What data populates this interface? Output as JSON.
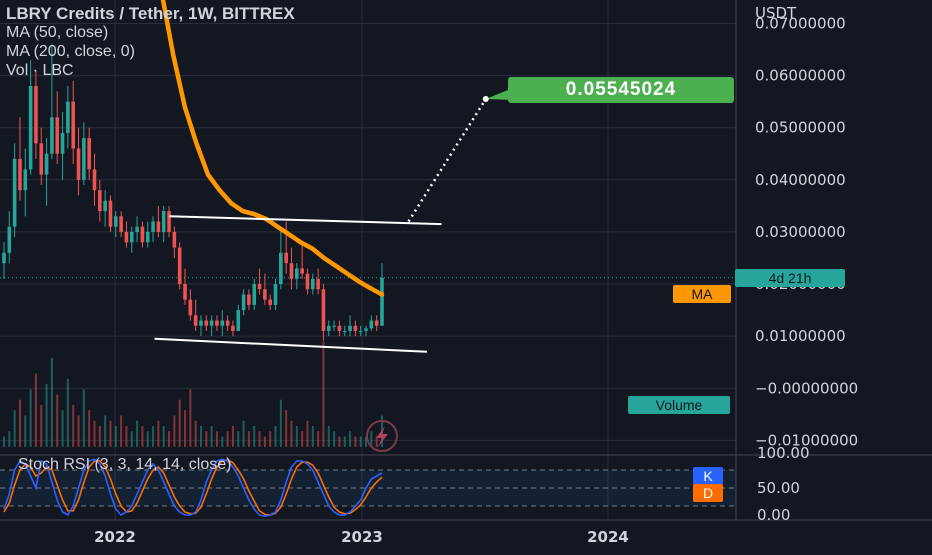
{
  "header": {
    "title": "LBRY Credits / Tether, 1W, BITTREX",
    "ma50": "MA (50, close)",
    "ma200": "MA (200, close, 0)",
    "vol": "Vol · LBC"
  },
  "stoch": {
    "title": "Stoch RSI (3, 3, 14, 14, close)",
    "k_label": "K",
    "d_label": "D"
  },
  "badges": {
    "countdown": "4d 21h",
    "ma": "MA",
    "volume": "Volume",
    "target_price": "0.05545024"
  },
  "colors": {
    "background": "#131722",
    "up": "#26a69a",
    "down": "#ef5350",
    "ma": "#ff9800",
    "target": "#4caf50",
    "k_line": "#2962ff",
    "d_line": "#ff6d00"
  },
  "chart_data": {
    "type": "candlestick",
    "title": "LBRY Credits / Tether, 1W, BITTREX",
    "y_axis_unit": "USDT",
    "y_ticks": [
      "0.07000000",
      "0.06000000",
      "0.05000000",
      "0.04000000",
      "0.03000000",
      "0.02000000",
      "0.01000000",
      "−0.00000000",
      "−0.01000000"
    ],
    "y_tick_values": [
      0.07,
      0.06,
      0.05,
      0.04,
      0.03,
      0.02,
      0.01,
      0,
      -0.01
    ],
    "x_ticks": [
      "2022",
      "2023",
      "2024"
    ],
    "ylim": [
      -0.0128,
      0.0745
    ],
    "current_price": 0.0212,
    "target_price": 0.05545024,
    "candles": [
      [
        0.024,
        0.028,
        0.021,
        0.026
      ],
      [
        0.026,
        0.034,
        0.024,
        0.031
      ],
      [
        0.031,
        0.047,
        0.029,
        0.044
      ],
      [
        0.044,
        0.052,
        0.036,
        0.038
      ],
      [
        0.038,
        0.046,
        0.033,
        0.042
      ],
      [
        0.042,
        0.063,
        0.041,
        0.058
      ],
      [
        0.058,
        0.061,
        0.044,
        0.047
      ],
      [
        0.047,
        0.05,
        0.039,
        0.041
      ],
      [
        0.041,
        0.048,
        0.035,
        0.045
      ],
      [
        0.045,
        0.066,
        0.044,
        0.052
      ],
      [
        0.052,
        0.057,
        0.043,
        0.045
      ],
      [
        0.045,
        0.053,
        0.04,
        0.049
      ],
      [
        0.049,
        0.058,
        0.046,
        0.055
      ],
      [
        0.055,
        0.059,
        0.043,
        0.046
      ],
      [
        0.046,
        0.05,
        0.037,
        0.04
      ],
      [
        0.04,
        0.051,
        0.039,
        0.048
      ],
      [
        0.048,
        0.05,
        0.04,
        0.042
      ],
      [
        0.042,
        0.045,
        0.035,
        0.038
      ],
      [
        0.038,
        0.04,
        0.032,
        0.034
      ],
      [
        0.034,
        0.038,
        0.031,
        0.036
      ],
      [
        0.036,
        0.037,
        0.03,
        0.031
      ],
      [
        0.031,
        0.034,
        0.029,
        0.033
      ],
      [
        0.033,
        0.034,
        0.029,
        0.03
      ],
      [
        0.03,
        0.032,
        0.027,
        0.028
      ],
      [
        0.028,
        0.031,
        0.026,
        0.03
      ],
      [
        0.03,
        0.033,
        0.028,
        0.031
      ],
      [
        0.031,
        0.032,
        0.027,
        0.028
      ],
      [
        0.028,
        0.032,
        0.027,
        0.03
      ],
      [
        0.03,
        0.033,
        0.028,
        0.032
      ],
      [
        0.032,
        0.035,
        0.029,
        0.03
      ],
      [
        0.03,
        0.035,
        0.028,
        0.034
      ],
      [
        0.034,
        0.035,
        0.029,
        0.03
      ],
      [
        0.03,
        0.031,
        0.025,
        0.027
      ],
      [
        0.027,
        0.028,
        0.019,
        0.02
      ],
      [
        0.02,
        0.023,
        0.016,
        0.017
      ],
      [
        0.017,
        0.019,
        0.013,
        0.014
      ],
      [
        0.014,
        0.017,
        0.011,
        0.012
      ],
      [
        0.012,
        0.014,
        0.01,
        0.013
      ],
      [
        0.013,
        0.014,
        0.011,
        0.012
      ],
      [
        0.012,
        0.014,
        0.01,
        0.013
      ],
      [
        0.013,
        0.014,
        0.011,
        0.012
      ],
      [
        0.012,
        0.015,
        0.01,
        0.013
      ],
      [
        0.013,
        0.014,
        0.011,
        0.012
      ],
      [
        0.012,
        0.013,
        0.01,
        0.011
      ],
      [
        0.011,
        0.016,
        0.011,
        0.015
      ],
      [
        0.015,
        0.019,
        0.014,
        0.018
      ],
      [
        0.018,
        0.019,
        0.015,
        0.016
      ],
      [
        0.016,
        0.021,
        0.015,
        0.02
      ],
      [
        0.02,
        0.023,
        0.018,
        0.019
      ],
      [
        0.019,
        0.022,
        0.016,
        0.017
      ],
      [
        0.017,
        0.018,
        0.015,
        0.016
      ],
      [
        0.016,
        0.021,
        0.015,
        0.02
      ],
      [
        0.02,
        0.031,
        0.019,
        0.026
      ],
      [
        0.026,
        0.032,
        0.022,
        0.024
      ],
      [
        0.024,
        0.027,
        0.019,
        0.021
      ],
      [
        0.021,
        0.024,
        0.019,
        0.023
      ],
      [
        0.023,
        0.028,
        0.021,
        0.022
      ],
      [
        0.022,
        0.023,
        0.018,
        0.019
      ],
      [
        0.019,
        0.022,
        0.018,
        0.021
      ],
      [
        0.021,
        0.023,
        0.018,
        0.019
      ],
      [
        0.019,
        0.02,
        0.009,
        0.011
      ],
      [
        0.011,
        0.013,
        0.01,
        0.012
      ],
      [
        0.012,
        0.013,
        0.011,
        0.012
      ],
      [
        0.012,
        0.013,
        0.01,
        0.011
      ],
      [
        0.011,
        0.012,
        0.01,
        0.011
      ],
      [
        0.011,
        0.014,
        0.01,
        0.012
      ],
      [
        0.012,
        0.013,
        0.01,
        0.011
      ],
      [
        0.011,
        0.012,
        0.01,
        0.011
      ],
      [
        0.011,
        0.012,
        0.01,
        0.0115
      ],
      [
        0.0115,
        0.014,
        0.011,
        0.013
      ],
      [
        0.013,
        0.014,
        0.011,
        0.012
      ],
      [
        0.012,
        0.024,
        0.012,
        0.0212
      ]
    ],
    "volume": [
      0.1,
      0.15,
      0.35,
      0.45,
      0.3,
      0.55,
      0.7,
      0.4,
      0.6,
      0.85,
      0.5,
      0.35,
      0.65,
      0.4,
      0.3,
      0.55,
      0.35,
      0.25,
      0.2,
      0.3,
      0.25,
      0.2,
      0.3,
      0.2,
      0.15,
      0.25,
      0.2,
      0.15,
      0.2,
      0.25,
      0.2,
      0.15,
      0.3,
      0.45,
      0.35,
      0.55,
      0.25,
      0.2,
      0.15,
      0.2,
      0.15,
      0.1,
      0.15,
      0.2,
      0.15,
      0.25,
      0.15,
      0.2,
      0.15,
      0.1,
      0.15,
      0.2,
      0.45,
      0.35,
      0.25,
      0.2,
      0.15,
      0.25,
      0.2,
      0.15,
      1.0,
      0.2,
      0.15,
      0.1,
      0.1,
      0.15,
      0.1,
      0.1,
      0.1,
      0.15,
      0.1,
      0.3
    ],
    "ma_curve": [
      [
        0.0,
        0.09
      ],
      [
        0.05,
        0.076
      ],
      [
        0.1,
        0.064
      ],
      [
        0.15,
        0.054
      ],
      [
        0.2,
        0.047
      ],
      [
        0.25,
        0.041
      ],
      [
        0.3,
        0.038
      ],
      [
        0.35,
        0.0355
      ],
      [
        0.4,
        0.034
      ],
      [
        0.45,
        0.0334
      ],
      [
        0.5,
        0.0325
      ],
      [
        0.55,
        0.031
      ],
      [
        0.6,
        0.0295
      ],
      [
        0.65,
        0.028
      ],
      [
        0.7,
        0.0268
      ],
      [
        0.75,
        0.025
      ],
      [
        0.8,
        0.0235
      ],
      [
        0.85,
        0.022
      ],
      [
        0.9,
        0.0205
      ],
      [
        0.95,
        0.0192
      ],
      [
        1.0,
        0.018
      ]
    ],
    "stoch_range": [
      0,
      100
    ],
    "stoch_ticks": [
      "100.00",
      "50.00",
      "0.00"
    ],
    "stoch_k": [
      15,
      40,
      80,
      95,
      90,
      70,
      50,
      95,
      90,
      60,
      30,
      10,
      5,
      20,
      50,
      80,
      95,
      98,
      90,
      70,
      40,
      15,
      5,
      10,
      20,
      40,
      60,
      80,
      90,
      80,
      60,
      40,
      20,
      10,
      5,
      5,
      10,
      30,
      60,
      80,
      95,
      98,
      95,
      85,
      70,
      50,
      30,
      15,
      5,
      3,
      5,
      10,
      30,
      60,
      85,
      95,
      95,
      90,
      80,
      60,
      40,
      20,
      10,
      5,
      5,
      10,
      20,
      30,
      50,
      65,
      70,
      75
    ],
    "stoch_d": [
      10,
      25,
      55,
      80,
      90,
      85,
      70,
      75,
      85,
      80,
      55,
      30,
      12,
      12,
      30,
      60,
      85,
      95,
      95,
      85,
      65,
      40,
      20,
      10,
      12,
      25,
      45,
      65,
      80,
      85,
      75,
      55,
      35,
      20,
      10,
      7,
      8,
      18,
      40,
      65,
      85,
      95,
      97,
      92,
      80,
      65,
      45,
      28,
      12,
      6,
      5,
      8,
      18,
      40,
      65,
      85,
      93,
      93,
      88,
      75,
      55,
      35,
      18,
      10,
      7,
      8,
      14,
      22,
      35,
      50,
      60,
      68
    ],
    "lines": {
      "resistance": [
        [
          0.23,
          0.033
        ],
        [
          0.6,
          0.0315
        ]
      ],
      "support": [
        [
          0.21,
          0.0095
        ],
        [
          0.58,
          0.007
        ]
      ],
      "projection": [
        [
          0.555,
          0.032
        ],
        [
          0.66,
          0.0555
        ]
      ]
    }
  }
}
